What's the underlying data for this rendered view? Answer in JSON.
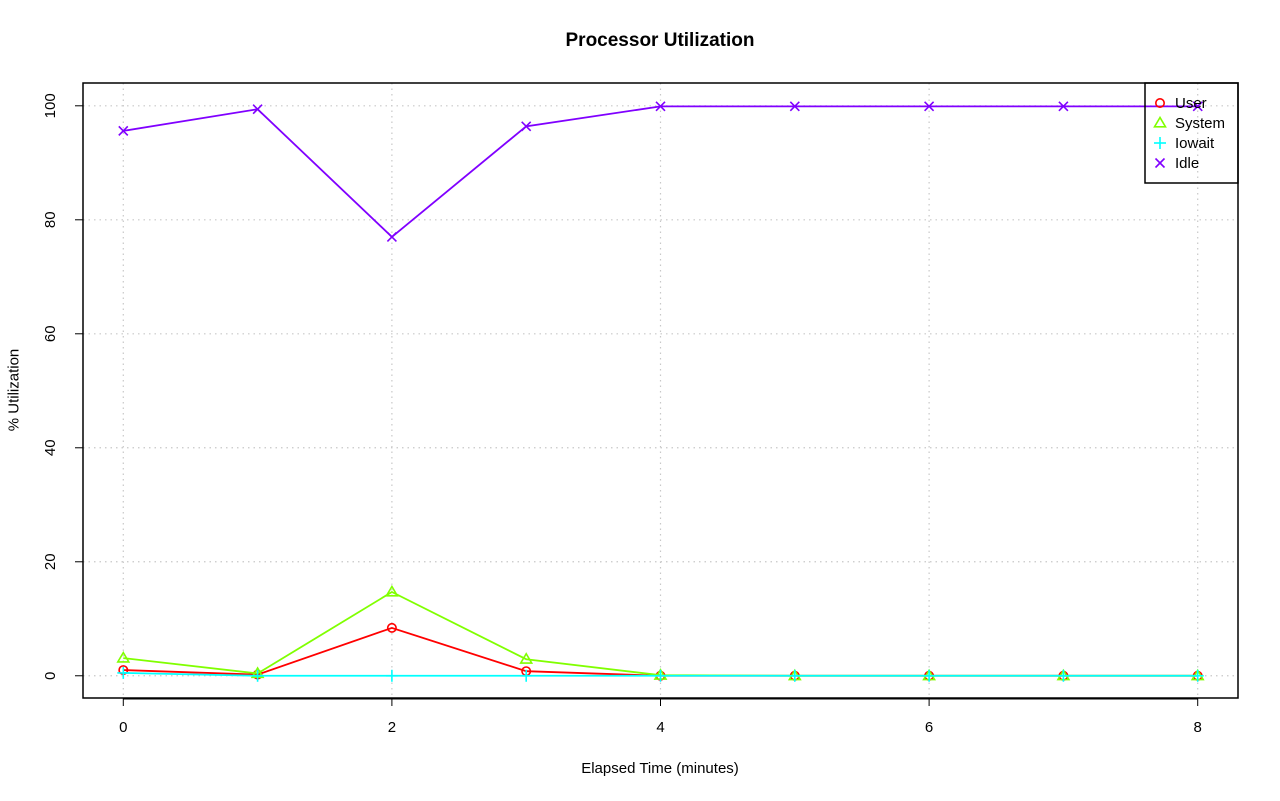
{
  "chart_data": {
    "type": "line",
    "title": "Processor Utilization",
    "xlabel": "Elapsed Time (minutes)",
    "ylabel": "% Utilization",
    "x": [
      0,
      1,
      2,
      3,
      4,
      5,
      6,
      7,
      8
    ],
    "xticks": [
      0,
      2,
      4,
      6,
      8
    ],
    "yticks": [
      0,
      20,
      40,
      60,
      80,
      100
    ],
    "xlim": [
      -0.3,
      8.3
    ],
    "ylim": [
      -3.9,
      104
    ],
    "grid": true,
    "legend_position": "top-right",
    "series": [
      {
        "name": "User",
        "color": "#ff0000",
        "marker": "circle",
        "values": [
          1.0,
          0.2,
          8.4,
          0.8,
          0.0,
          0.0,
          0.0,
          0.0,
          0.0
        ]
      },
      {
        "name": "System",
        "color": "#80ff00",
        "marker": "triangle",
        "values": [
          3.1,
          0.4,
          14.7,
          2.9,
          0.1,
          0.0,
          0.0,
          0.0,
          0.0
        ]
      },
      {
        "name": "Iowait",
        "color": "#00ffff",
        "marker": "plus",
        "values": [
          0.5,
          0.0,
          0.0,
          0.0,
          0.0,
          0.0,
          0.0,
          0.0,
          0.0
        ]
      },
      {
        "name": "Idle",
        "color": "#8000ff",
        "marker": "cross",
        "values": [
          95.6,
          99.4,
          77.0,
          96.4,
          99.9,
          99.9,
          99.9,
          99.9,
          99.9
        ]
      }
    ]
  }
}
